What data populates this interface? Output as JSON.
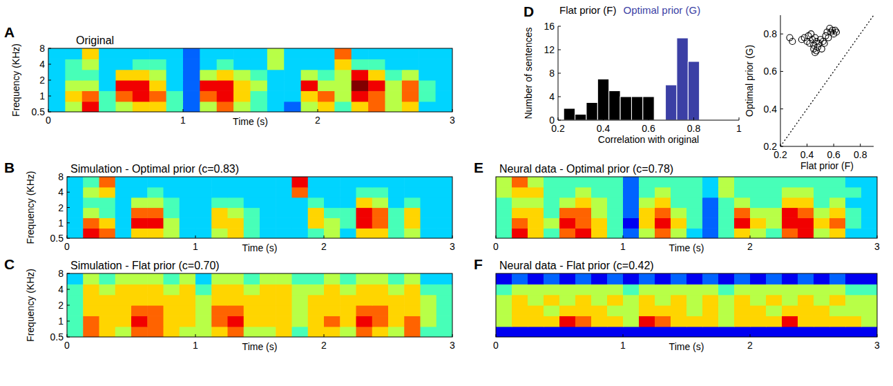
{
  "chart_data": [
    {
      "type": "heatmap",
      "panel": "A",
      "title": "Original",
      "x_label": "Time (s)",
      "y_label": "Frequency (KHz)",
      "xlim": [
        0,
        3
      ],
      "ylim": [
        0.5,
        8
      ],
      "xticks": [
        0,
        1,
        2,
        3
      ],
      "yticks": [
        0.5,
        1,
        2,
        4,
        8
      ],
      "log": "y",
      "tick_labels": true,
      "zlim": [
        0,
        9
      ],
      "x_bins": [
        0,
        0.125,
        0.25,
        0.375,
        0.5,
        0.625,
        0.75,
        0.875,
        1,
        1.125,
        1.25,
        1.375,
        1.5,
        1.625,
        1.75,
        1.875,
        2,
        2.125,
        2.25,
        2.375,
        2.5,
        2.625,
        2.75,
        2.875,
        3
      ],
      "y_bins": [
        0.5,
        0.79,
        1.26,
        2,
        3.17,
        5.04,
        8
      ],
      "cells": [
        [
          3,
          5,
          8,
          4,
          5,
          6,
          6,
          4,
          2,
          5,
          7,
          5,
          4,
          3,
          2,
          5,
          6,
          4,
          6,
          7,
          5,
          6,
          3,
          3
        ],
        [
          3,
          6,
          7,
          4,
          7,
          8,
          7,
          4,
          2,
          7,
          8,
          6,
          4,
          3,
          3,
          6,
          7,
          5,
          8,
          7,
          5,
          7,
          4,
          3
        ],
        [
          3,
          5,
          5,
          3,
          8,
          8,
          6,
          3,
          2,
          8,
          8,
          6,
          5,
          3,
          3,
          8,
          5,
          5,
          9,
          8,
          5,
          7,
          4,
          3
        ],
        [
          3,
          4,
          4,
          3,
          6,
          6,
          5,
          3,
          2,
          5,
          6,
          5,
          4,
          3,
          3,
          5,
          4,
          5,
          8,
          6,
          4,
          5,
          3,
          3
        ],
        [
          3,
          4,
          5,
          3,
          3,
          4,
          4,
          3,
          2,
          3,
          4,
          3,
          3,
          5,
          3,
          3,
          3,
          6,
          4,
          4,
          3,
          3,
          3,
          3
        ],
        [
          3,
          3,
          6,
          3,
          3,
          3,
          3,
          3,
          2,
          3,
          3,
          3,
          3,
          5,
          3,
          3,
          3,
          7,
          3,
          3,
          3,
          3,
          3,
          3
        ]
      ]
    },
    {
      "type": "heatmap",
      "panel": "B",
      "title": "Simulation - Optimal prior (c=0.83)",
      "x_label": "Time (s)",
      "y_label": "Frequency (KHz)",
      "xlim": [
        0,
        3
      ],
      "ylim": [
        0.5,
        8
      ],
      "xticks": [
        0,
        1,
        2,
        3
      ],
      "yticks": [
        0.5,
        1,
        2,
        4,
        8
      ],
      "log": "y",
      "tick_labels": true,
      "zlim": [
        0,
        9
      ],
      "x_bins": [
        0,
        0.125,
        0.25,
        0.375,
        0.5,
        0.625,
        0.75,
        0.875,
        1,
        1.125,
        1.25,
        1.375,
        1.5,
        1.625,
        1.75,
        1.875,
        2,
        2.125,
        2.25,
        2.375,
        2.5,
        2.625,
        2.75,
        2.875,
        3
      ],
      "y_bins": [
        0.5,
        0.79,
        1.26,
        2,
        3.17,
        5.04,
        8
      ],
      "cells": [
        [
          3,
          8,
          7,
          3,
          6,
          6,
          5,
          3,
          3,
          5,
          6,
          4,
          3,
          3,
          3,
          4,
          5,
          3,
          6,
          6,
          4,
          5,
          3,
          3
        ],
        [
          3,
          7,
          6,
          3,
          8,
          8,
          5,
          3,
          3,
          6,
          6,
          4,
          3,
          3,
          3,
          6,
          5,
          4,
          8,
          7,
          4,
          6,
          3,
          3
        ],
        [
          3,
          5,
          4,
          3,
          7,
          7,
          4,
          3,
          3,
          6,
          5,
          4,
          3,
          3,
          3,
          6,
          4,
          4,
          8,
          7,
          4,
          6,
          3,
          3
        ],
        [
          3,
          4,
          4,
          3,
          5,
          5,
          4,
          3,
          3,
          4,
          4,
          3,
          3,
          3,
          3,
          4,
          3,
          3,
          6,
          5,
          3,
          4,
          3,
          3
        ],
        [
          3,
          5,
          6,
          3,
          3,
          4,
          3,
          3,
          3,
          3,
          3,
          3,
          3,
          3,
          7,
          3,
          3,
          3,
          4,
          4,
          3,
          3,
          3,
          3
        ],
        [
          3,
          4,
          7,
          3,
          3,
          3,
          3,
          3,
          3,
          3,
          3,
          3,
          3,
          3,
          8,
          3,
          3,
          3,
          3,
          3,
          3,
          3,
          3,
          3
        ]
      ]
    },
    {
      "type": "heatmap",
      "panel": "C",
      "title": "Simulation - Flat prior (c=0.70)",
      "x_label": "Time (s)",
      "y_label": "Frequency (KHz)",
      "xlim": [
        0,
        3
      ],
      "ylim": [
        0.5,
        8
      ],
      "xticks": [
        0,
        1,
        2,
        3
      ],
      "yticks": [
        0.5,
        1,
        2,
        4,
        8
      ],
      "log": "y",
      "tick_labels": true,
      "zlim": [
        0,
        9
      ],
      "x_bins": [
        0,
        0.125,
        0.25,
        0.375,
        0.5,
        0.625,
        0.75,
        0.875,
        1,
        1.125,
        1.25,
        1.375,
        1.5,
        1.625,
        1.75,
        1.875,
        2,
        2.125,
        2.25,
        2.375,
        2.5,
        2.625,
        2.75,
        2.875,
        3
      ],
      "y_bins": [
        0.5,
        0.79,
        1.26,
        2,
        3.17,
        5.04,
        8
      ],
      "cells": [
        [
          4,
          7,
          6,
          5,
          7,
          7,
          6,
          5,
          5,
          6,
          7,
          5,
          5,
          6,
          4,
          6,
          6,
          5,
          7,
          6,
          5,
          7,
          4,
          4
        ],
        [
          4,
          7,
          6,
          6,
          8,
          7,
          6,
          6,
          5,
          7,
          8,
          6,
          6,
          6,
          5,
          6,
          7,
          6,
          8,
          7,
          6,
          7,
          5,
          4
        ],
        [
          4,
          6,
          6,
          6,
          7,
          7,
          6,
          6,
          5,
          7,
          7,
          6,
          6,
          6,
          5,
          6,
          6,
          6,
          7,
          7,
          6,
          6,
          5,
          4
        ],
        [
          4,
          6,
          6,
          6,
          6,
          6,
          6,
          6,
          5,
          6,
          6,
          6,
          6,
          6,
          5,
          6,
          6,
          6,
          6,
          6,
          6,
          6,
          5,
          4
        ],
        [
          4,
          6,
          5,
          6,
          6,
          6,
          5,
          6,
          4,
          6,
          6,
          5,
          6,
          6,
          5,
          5,
          6,
          5,
          6,
          6,
          5,
          6,
          4,
          4
        ],
        [
          3,
          5,
          4,
          5,
          5,
          5,
          4,
          5,
          3,
          5,
          5,
          4,
          5,
          5,
          4,
          4,
          5,
          4,
          5,
          5,
          4,
          5,
          3,
          3
        ]
      ]
    },
    {
      "type": "histogram",
      "panel": "D",
      "x_label": "Correlation with original",
      "y_label": "Number of sentences",
      "xlim": [
        0.2,
        1
      ],
      "ylim": [
        0,
        16
      ],
      "xticks": [
        0.2,
        0.4,
        0.6,
        0.8,
        1
      ],
      "yticks": [
        0,
        4,
        8,
        12,
        16
      ],
      "bins": [
        0.225,
        0.275,
        0.325,
        0.375,
        0.425,
        0.475,
        0.525,
        0.575,
        0.625,
        0.675,
        0.725,
        0.775,
        0.825
      ],
      "series": [
        {
          "name": "Flat prior (F)",
          "color": "#000000",
          "values": [
            2,
            1,
            3,
            7,
            5,
            4,
            4,
            4,
            0,
            0,
            0,
            0
          ]
        },
        {
          "name": "Optimal prior (G)",
          "color": "#3b3fa5",
          "values": [
            0,
            0,
            0,
            0,
            0,
            0,
            0,
            0,
            0,
            6,
            14,
            10
          ]
        }
      ]
    },
    {
      "type": "scatter",
      "x_label": "Flat prior (F)",
      "y_label": "Optimal prior (G)",
      "xlim": [
        0.2,
        0.9
      ],
      "ylim": [
        0.2,
        0.9
      ],
      "xticks": [
        0.2,
        0.4,
        0.6,
        0.8
      ],
      "yticks": [
        0.2,
        0.4,
        0.6,
        0.8
      ],
      "marker": "circle",
      "line_style": "dotted",
      "x": [
        0.27,
        0.29,
        0.36,
        0.38,
        0.4,
        0.41,
        0.42,
        0.43,
        0.44,
        0.45,
        0.45,
        0.46,
        0.46,
        0.47,
        0.47,
        0.48,
        0.49,
        0.5,
        0.51,
        0.52,
        0.53,
        0.54,
        0.55,
        0.56,
        0.57,
        0.58,
        0.59,
        0.6,
        0.61,
        0.62
      ],
      "y": [
        0.78,
        0.76,
        0.77,
        0.78,
        0.76,
        0.79,
        0.75,
        0.8,
        0.77,
        0.74,
        0.72,
        0.78,
        0.7,
        0.71,
        0.76,
        0.73,
        0.75,
        0.77,
        0.72,
        0.76,
        0.75,
        0.79,
        0.81,
        0.78,
        0.83,
        0.81,
        0.82,
        0.8,
        0.82,
        0.81
      ]
    },
    {
      "type": "heatmap",
      "panel": "E",
      "title": "Neural data - Optimal prior (c=0.78)",
      "x_label": "Time (s)",
      "xlim": [
        0,
        3
      ],
      "ylim": [
        0.5,
        8
      ],
      "xticks": [
        0,
        1,
        2,
        3
      ],
      "log": "y",
      "tick_labels": "x",
      "zlim": [
        0,
        9
      ],
      "x_bins": [
        0,
        0.125,
        0.25,
        0.375,
        0.5,
        0.625,
        0.75,
        0.875,
        1,
        1.125,
        1.25,
        1.375,
        1.5,
        1.625,
        1.75,
        1.875,
        2,
        2.125,
        2.25,
        2.375,
        2.5,
        2.625,
        2.75,
        2.875,
        3
      ],
      "y_bins": [
        0.5,
        0.79,
        1.26,
        2,
        3.17,
        5.04,
        8
      ],
      "cells": [
        [
          4,
          8,
          6,
          4,
          7,
          8,
          6,
          4,
          2,
          5,
          7,
          5,
          3,
          2,
          4,
          6,
          5,
          4,
          7,
          8,
          5,
          6,
          3,
          3
        ],
        [
          4,
          7,
          6,
          5,
          8,
          7,
          6,
          4,
          1,
          6,
          8,
          6,
          4,
          2,
          4,
          8,
          6,
          5,
          8,
          8,
          6,
          7,
          4,
          3
        ],
        [
          4,
          6,
          6,
          4,
          7,
          7,
          5,
          4,
          2,
          6,
          7,
          5,
          4,
          2,
          4,
          7,
          5,
          5,
          8,
          7,
          5,
          6,
          4,
          3
        ],
        [
          4,
          5,
          5,
          4,
          5,
          6,
          5,
          4,
          2,
          5,
          6,
          4,
          4,
          2,
          4,
          5,
          4,
          4,
          6,
          6,
          4,
          5,
          3,
          3
        ],
        [
          5,
          6,
          6,
          4,
          4,
          5,
          4,
          4,
          2,
          4,
          5,
          4,
          4,
          3,
          5,
          4,
          4,
          4,
          5,
          5,
          4,
          4,
          4,
          3
        ],
        [
          5,
          7,
          5,
          4,
          4,
          4,
          4,
          4,
          2,
          4,
          4,
          4,
          4,
          3,
          5,
          4,
          4,
          4,
          4,
          4,
          4,
          4,
          3,
          3
        ]
      ]
    },
    {
      "type": "heatmap",
      "panel": "F",
      "title": "Neural data - Flat prior (c=0.42)",
      "x_label": "Time (s)",
      "xlim": [
        0,
        3
      ],
      "ylim": [
        0.5,
        8
      ],
      "xticks": [
        0,
        1,
        2,
        3
      ],
      "log": "y",
      "tick_labels": "x",
      "zlim": [
        0,
        9
      ],
      "x_bins": [
        0,
        0.125,
        0.25,
        0.375,
        0.5,
        0.625,
        0.75,
        0.875,
        1,
        1.125,
        1.25,
        1.375,
        1.5,
        1.625,
        1.75,
        1.875,
        2,
        2.125,
        2.25,
        2.375,
        2.5,
        2.625,
        2.75,
        2.875,
        3
      ],
      "y_bins": [
        0.5,
        0.79,
        1.26,
        2,
        3.17,
        5.04,
        8
      ],
      "cells": [
        [
          1,
          1,
          1,
          1,
          1,
          1,
          1,
          1,
          1,
          1,
          1,
          1,
          1,
          1,
          1,
          1,
          1,
          1,
          1,
          1,
          1,
          1,
          1,
          1
        ],
        [
          5,
          6,
          6,
          6,
          8,
          7,
          6,
          6,
          5,
          8,
          7,
          6,
          6,
          6,
          5,
          6,
          6,
          6,
          8,
          6,
          6,
          6,
          6,
          5
        ],
        [
          5,
          6,
          6,
          5,
          6,
          6,
          6,
          5,
          5,
          6,
          6,
          6,
          5,
          6,
          5,
          6,
          6,
          5,
          6,
          6,
          6,
          5,
          5,
          5
        ],
        [
          5,
          6,
          5,
          6,
          5,
          6,
          5,
          6,
          5,
          6,
          5,
          6,
          5,
          6,
          5,
          6,
          5,
          6,
          5,
          6,
          5,
          6,
          5,
          5
        ],
        [
          4,
          5,
          5,
          5,
          5,
          5,
          5,
          5,
          4,
          5,
          5,
          5,
          5,
          5,
          4,
          5,
          5,
          5,
          5,
          5,
          5,
          5,
          4,
          4
        ],
        [
          1,
          2,
          1,
          2,
          1,
          2,
          1,
          2,
          1,
          2,
          1,
          2,
          1,
          2,
          1,
          2,
          1,
          2,
          1,
          2,
          1,
          2,
          1,
          1
        ]
      ]
    }
  ]
}
